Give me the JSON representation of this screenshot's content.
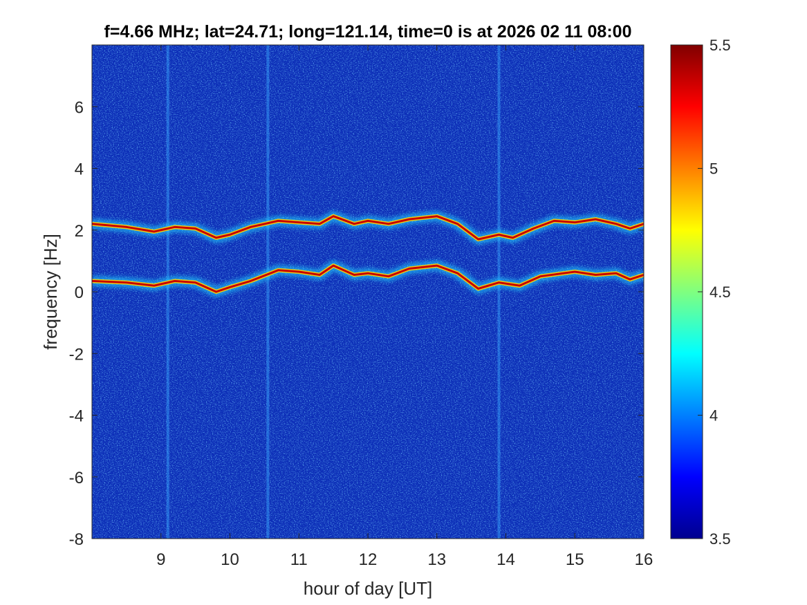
{
  "chart_data": {
    "type": "heatmap",
    "title": "f=4.66 MHz;  lat=24.71; long=121.14, time=0 is at 2026 02 11 08:00",
    "xlabel": "hour of day [UT]",
    "ylabel": "frequency [Hz]",
    "xlim": [
      8,
      16
    ],
    "ylim": [
      -8,
      8
    ],
    "x_ticks": [
      9,
      10,
      11,
      12,
      13,
      14,
      15,
      16
    ],
    "x_tick_labels": [
      "9",
      "10",
      "11",
      "12",
      "13",
      "14",
      "15",
      "16"
    ],
    "y_ticks": [
      -8,
      -6,
      -4,
      -2,
      0,
      2,
      4,
      6
    ],
    "y_tick_labels": [
      "-8",
      "-6",
      "-4",
      "-2",
      "0",
      "2",
      "4",
      "6"
    ],
    "colormap": "jet",
    "colorbar": {
      "range": [
        3.5,
        5.5
      ],
      "ticks": [
        3.5,
        4,
        4.5,
        5,
        5.5
      ],
      "tick_labels": [
        "3.5",
        "4",
        "4.5",
        "5",
        "5.5"
      ]
    },
    "background_level": 3.6,
    "traces": [
      {
        "level": 5.4,
        "points": [
          [
            8.0,
            0.35
          ],
          [
            8.5,
            0.3
          ],
          [
            8.9,
            0.2
          ],
          [
            9.2,
            0.35
          ],
          [
            9.5,
            0.3
          ],
          [
            9.8,
            0.0
          ],
          [
            10.0,
            0.15
          ],
          [
            10.3,
            0.35
          ],
          [
            10.7,
            0.7
          ],
          [
            11.0,
            0.65
          ],
          [
            11.3,
            0.55
          ],
          [
            11.5,
            0.85
          ],
          [
            11.8,
            0.55
          ],
          [
            12.0,
            0.6
          ],
          [
            12.3,
            0.5
          ],
          [
            12.6,
            0.75
          ],
          [
            13.0,
            0.85
          ],
          [
            13.3,
            0.6
          ],
          [
            13.6,
            0.1
          ],
          [
            13.9,
            0.3
          ],
          [
            14.2,
            0.2
          ],
          [
            14.5,
            0.5
          ],
          [
            15.0,
            0.65
          ],
          [
            15.3,
            0.55
          ],
          [
            15.6,
            0.6
          ],
          [
            15.8,
            0.4
          ],
          [
            16.0,
            0.55
          ]
        ]
      },
      {
        "level": 5.4,
        "points": [
          [
            8.0,
            2.2
          ],
          [
            8.5,
            2.1
          ],
          [
            8.9,
            1.95
          ],
          [
            9.2,
            2.1
          ],
          [
            9.5,
            2.05
          ],
          [
            9.8,
            1.75
          ],
          [
            10.0,
            1.85
          ],
          [
            10.3,
            2.1
          ],
          [
            10.7,
            2.3
          ],
          [
            11.0,
            2.25
          ],
          [
            11.3,
            2.2
          ],
          [
            11.5,
            2.45
          ],
          [
            11.8,
            2.2
          ],
          [
            12.0,
            2.3
          ],
          [
            12.3,
            2.2
          ],
          [
            12.6,
            2.35
          ],
          [
            13.0,
            2.45
          ],
          [
            13.3,
            2.2
          ],
          [
            13.6,
            1.7
          ],
          [
            13.9,
            1.85
          ],
          [
            14.1,
            1.75
          ],
          [
            14.4,
            2.05
          ],
          [
            14.7,
            2.3
          ],
          [
            15.0,
            2.25
          ],
          [
            15.3,
            2.35
          ],
          [
            15.6,
            2.2
          ],
          [
            15.8,
            2.05
          ],
          [
            16.0,
            2.2
          ]
        ]
      }
    ],
    "vertical_streaks": [
      9.1,
      10.55,
      13.9
    ],
    "grid": false,
    "legend": false
  }
}
